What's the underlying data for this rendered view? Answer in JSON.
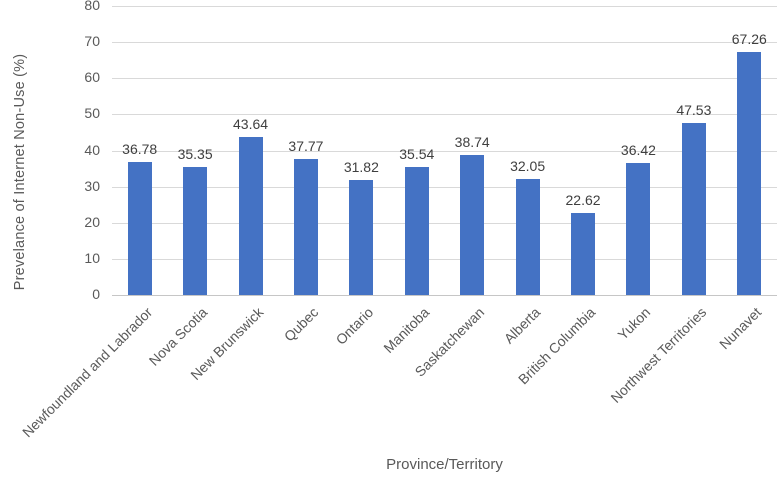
{
  "chart_data": {
    "type": "bar",
    "title": "",
    "categories": [
      "Newfoundland and Labrador",
      "Nova Scotia",
      "New Brunswick",
      "Qubec",
      "Ontario",
      "Manitoba",
      "Saskatchewan",
      "Alberta",
      "British Columbia",
      "Yukon",
      "Northwest Territories",
      "Nunavet"
    ],
    "values": [
      36.78,
      35.35,
      43.64,
      37.77,
      31.82,
      35.54,
      38.74,
      32.05,
      22.62,
      36.42,
      47.53,
      67.26
    ],
    "value_labels": [
      "36.78",
      "35.35",
      "43.64",
      "37.77",
      "31.82",
      "35.54",
      "38.74",
      "32.05",
      "22.62",
      "36.42",
      "47.53",
      "67.26"
    ],
    "xlabel": "Province/Territory",
    "ylabel": "Prevelance of Internet Non-Use (%)",
    "ylim": [
      0,
      80
    ],
    "ytick_step": 10,
    "ytick_labels": [
      "0",
      "10",
      "20",
      "30",
      "40",
      "50",
      "60",
      "70",
      "80"
    ],
    "grid": "horizontal",
    "legend": "none",
    "bar_color": "#4472C4",
    "gridline_color": "#D9D9D9",
    "axis_line_color": "#C6C6C6",
    "axis_text_color": "#595959",
    "value_label_color": "#3F3F3F",
    "background_color": "#FFFFFF"
  }
}
